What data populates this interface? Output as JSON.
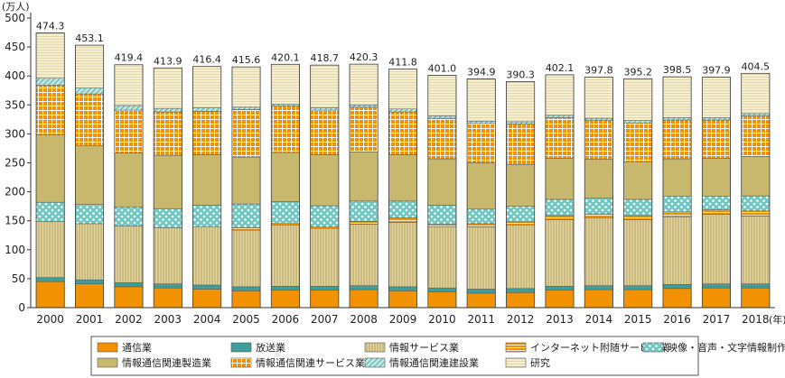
{
  "chart_data": {
    "type": "bar",
    "stacked": true,
    "y_unit": "(万人)",
    "x_unit": "(年)",
    "ylim": [
      0,
      500
    ],
    "yticks": [
      0,
      50,
      100,
      150,
      200,
      250,
      300,
      350,
      400,
      450,
      500
    ],
    "grid": false,
    "legend_position": "bottom",
    "categories": [
      "2000",
      "2001",
      "2002",
      "2003",
      "2004",
      "2005",
      "2006",
      "2007",
      "2008",
      "2009",
      "2010",
      "2011",
      "2012",
      "2013",
      "2014",
      "2015",
      "2016",
      "2017",
      "2018"
    ],
    "totals": [
      "474.3",
      "453.1",
      "419.4",
      "413.9",
      "416.4",
      "415.6",
      "420.1",
      "418.7",
      "420.3",
      "411.8",
      "401.0",
      "394.9",
      "390.3",
      "402.1",
      "397.8",
      "395.2",
      "398.5",
      "397.9",
      "404.5"
    ],
    "series": [
      {
        "name": "通信業",
        "color": "#f39200",
        "pattern": "solid",
        "values": [
          45,
          41,
          36,
          34,
          32,
          29,
          30,
          30,
          31,
          29,
          27,
          25,
          26,
          30,
          31,
          31,
          33,
          34,
          34
        ]
      },
      {
        "name": "放送業",
        "color": "#3f9e99",
        "pattern": "solid",
        "values": [
          7,
          7,
          7,
          7,
          7,
          7,
          7,
          7,
          7,
          7,
          7,
          7,
          7,
          7,
          7,
          7,
          7,
          7,
          7
        ]
      },
      {
        "name": "情報サービス業",
        "color": "#d4c48c",
        "pattern": "vlines",
        "values": [
          97,
          97,
          98,
          97,
          101,
          98,
          106,
          99,
          106,
          111,
          106,
          107,
          110,
          115,
          117,
          114,
          117,
          120,
          117
        ]
      },
      {
        "name": "インターネット附随サービス業",
        "color": "#f39200",
        "pattern": "hlines",
        "values": [
          0,
          0,
          0,
          0,
          0,
          4,
          3,
          3,
          5,
          8,
          4,
          6,
          5,
          7,
          7,
          7,
          8,
          8,
          9
        ]
      },
      {
        "name": "映像・音声・文字情報制作業",
        "color": "#6fc7c2",
        "pattern": "dots",
        "values": [
          33,
          33,
          33,
          33,
          37,
          41,
          37,
          37,
          35,
          29,
          33,
          25,
          27,
          28,
          27,
          28,
          27,
          23,
          26
        ]
      },
      {
        "name": "情報通信関連製造業",
        "color": "#c8b86e",
        "pattern": "solid",
        "values": [
          116,
          102,
          93,
          92,
          87,
          81,
          85,
          88,
          85,
          80,
          80,
          80,
          72,
          71,
          67,
          65,
          65,
          66,
          68
        ]
      },
      {
        "name": "情報通信関連サービス業",
        "color": "#f39200",
        "pattern": "grid",
        "values": [
          86,
          89,
          74,
          75,
          75,
          82,
          80,
          77,
          77,
          74,
          70,
          68,
          70,
          70,
          67,
          67,
          67,
          66,
          70
        ]
      },
      {
        "name": "情報通信関連建設業",
        "color": "#6fc7c2",
        "pattern": "diag",
        "values": [
          12,
          10,
          8,
          6,
          6,
          4,
          3,
          4,
          4,
          5,
          4,
          4,
          4,
          4,
          4,
          4,
          4,
          4,
          4
        ]
      },
      {
        "name": "研究",
        "color": "#f5eed0",
        "pattern": "hlines-light",
        "values": [
          78.3,
          74.1,
          70.4,
          69.9,
          71.4,
          69.6,
          69.1,
          73.7,
          70.3,
          68.8,
          70.0,
          72.9,
          69.3,
          70.1,
          70.8,
          72.2,
          70.5,
          69.9,
          69.5
        ]
      }
    ],
    "legend_rows": [
      [
        "通信業",
        "放送業",
        "情報サービス業",
        "インターネット附随サービス業",
        "映像・音声・文字情報制作業"
      ],
      [
        "情報通信関連製造業",
        "情報通信関連サービス業",
        "情報通信関連建設業",
        "研究"
      ]
    ]
  }
}
